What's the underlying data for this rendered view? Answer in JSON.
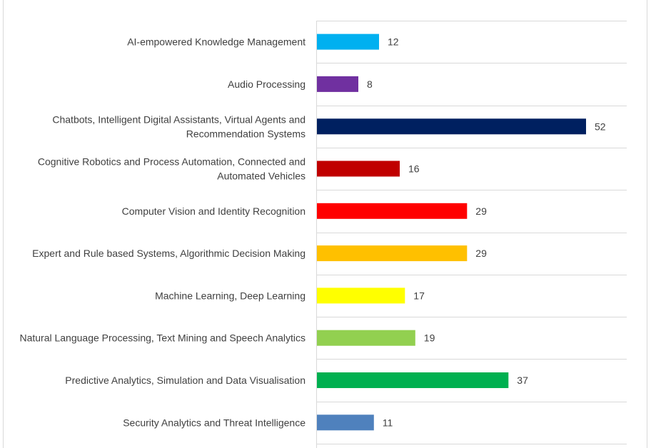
{
  "chart_data": {
    "type": "bar",
    "orientation": "horizontal",
    "title": "",
    "xlabel": "",
    "ylabel": "",
    "xlim": [
      0,
      60
    ],
    "grid": true,
    "legend": "none",
    "data_labels": true,
    "categories": [
      [
        "AI-empowered Knowledge Management"
      ],
      [
        "Audio Processing"
      ],
      [
        "Chatbots, Intelligent Digital Assistants, Virtual Agents and",
        "Recommendation Systems"
      ],
      [
        "Cognitive Robotics and Process Automation, Connected and",
        "Automated Vehicles"
      ],
      [
        "Computer Vision and Identity Recognition"
      ],
      [
        "Expert and Rule based Systems, Algorithmic Decision Making"
      ],
      [
        "Machine Learning, Deep Learning"
      ],
      [
        "Natural Language Processing, Text Mining and Speech Analytics"
      ],
      [
        "Predictive Analytics, Simulation and Data Visualisation"
      ],
      [
        "Security Analytics and Threat Intelligence"
      ]
    ],
    "values": [
      12,
      8,
      52,
      16,
      29,
      29,
      17,
      19,
      37,
      11
    ],
    "colors": [
      "#00b0f0",
      "#7030a0",
      "#002060",
      "#c00000",
      "#ff0000",
      "#ffc000",
      "#ffff00",
      "#92d050",
      "#00b050",
      "#4f81bd"
    ]
  }
}
